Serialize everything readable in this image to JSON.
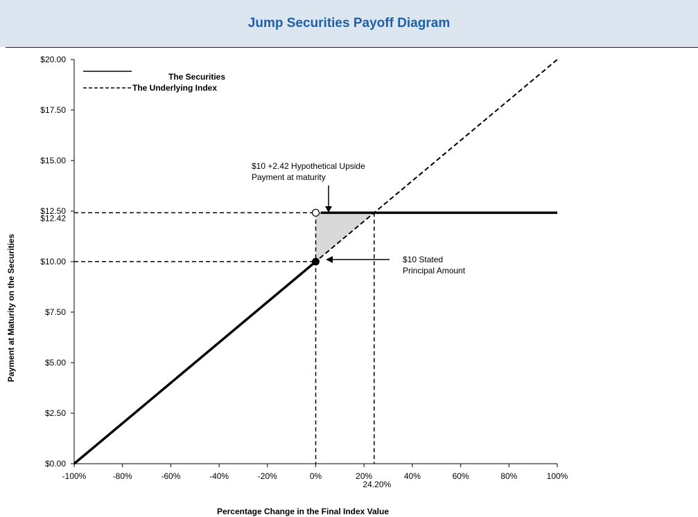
{
  "header": {
    "title": "Jump Securities Payoff Diagram"
  },
  "chart_data": {
    "type": "line",
    "xlabel": "Percentage Change in the Final Index Value",
    "ylabel": "Payment at Maturity on the Securities",
    "xlim": [
      -100,
      100
    ],
    "ylim": [
      0,
      20
    ],
    "x_ticks": [
      {
        "value": -100,
        "label": "-100%"
      },
      {
        "value": -80,
        "label": "-80%"
      },
      {
        "value": -60,
        "label": "-60%"
      },
      {
        "value": -40,
        "label": "-40%"
      },
      {
        "value": -20,
        "label": "-20%"
      },
      {
        "value": 0,
        "label": "0%"
      },
      {
        "value": 20,
        "label": "20%"
      },
      {
        "value": 40,
        "label": "40%"
      },
      {
        "value": 60,
        "label": "60%"
      },
      {
        "value": 80,
        "label": "80%"
      },
      {
        "value": 100,
        "label": "100%"
      }
    ],
    "y_ticks": [
      {
        "value": 0,
        "label": "$0.00"
      },
      {
        "value": 2.5,
        "label": "$2.50"
      },
      {
        "value": 5,
        "label": "$5.00"
      },
      {
        "value": 7.5,
        "label": "$7.50"
      },
      {
        "value": 10,
        "label": "$10.00"
      },
      {
        "value": 12.5,
        "label": "$12.50"
      },
      {
        "value": 15,
        "label": "$15.00"
      },
      {
        "value": 17.5,
        "label": "$17.50"
      },
      {
        "value": 20,
        "label": "$20.00"
      }
    ],
    "extra_y_labels": [
      {
        "value": 12.42,
        "label": "$12.42"
      }
    ],
    "extra_x_labels": [
      {
        "value": 24.2,
        "label": "24.20%"
      }
    ],
    "legend": {
      "placement": "top-left",
      "items": [
        {
          "label": "The Securities",
          "style": "solid"
        },
        {
          "label": "The Underlying Index",
          "style": "dashed"
        }
      ]
    },
    "series": [
      {
        "name": "The Securities",
        "style": "solid",
        "segments": [
          [
            [
              -100,
              0
            ],
            [
              0,
              10
            ]
          ],
          [
            [
              2,
              12.42
            ],
            [
              100,
              12.42
            ]
          ]
        ]
      },
      {
        "name": "The Underlying Index",
        "style": "dashed",
        "points": [
          [
            -100,
            0
          ],
          [
            100,
            20
          ]
        ]
      }
    ],
    "annotations": [
      {
        "text_lines": [
          "$10 +2.42 Hypothetical Upside",
          "Payment at maturity"
        ],
        "target": [
          2,
          12.42
        ]
      },
      {
        "text_lines": [
          "$10 Stated",
          "Principal Amount"
        ],
        "target": [
          0,
          10
        ]
      }
    ],
    "shaded_region": [
      [
        0,
        10
      ],
      [
        0,
        12.42
      ],
      [
        24.2,
        12.42
      ]
    ],
    "points": [
      {
        "x": 0,
        "y": 10,
        "marker": "filled"
      },
      {
        "x": 0,
        "y": 12.42,
        "marker": "open"
      }
    ],
    "colors": {
      "header_bg": "#dce6f1",
      "title": "#1f5fa8",
      "line": "#000000",
      "shade": "#d9d9d9"
    }
  }
}
